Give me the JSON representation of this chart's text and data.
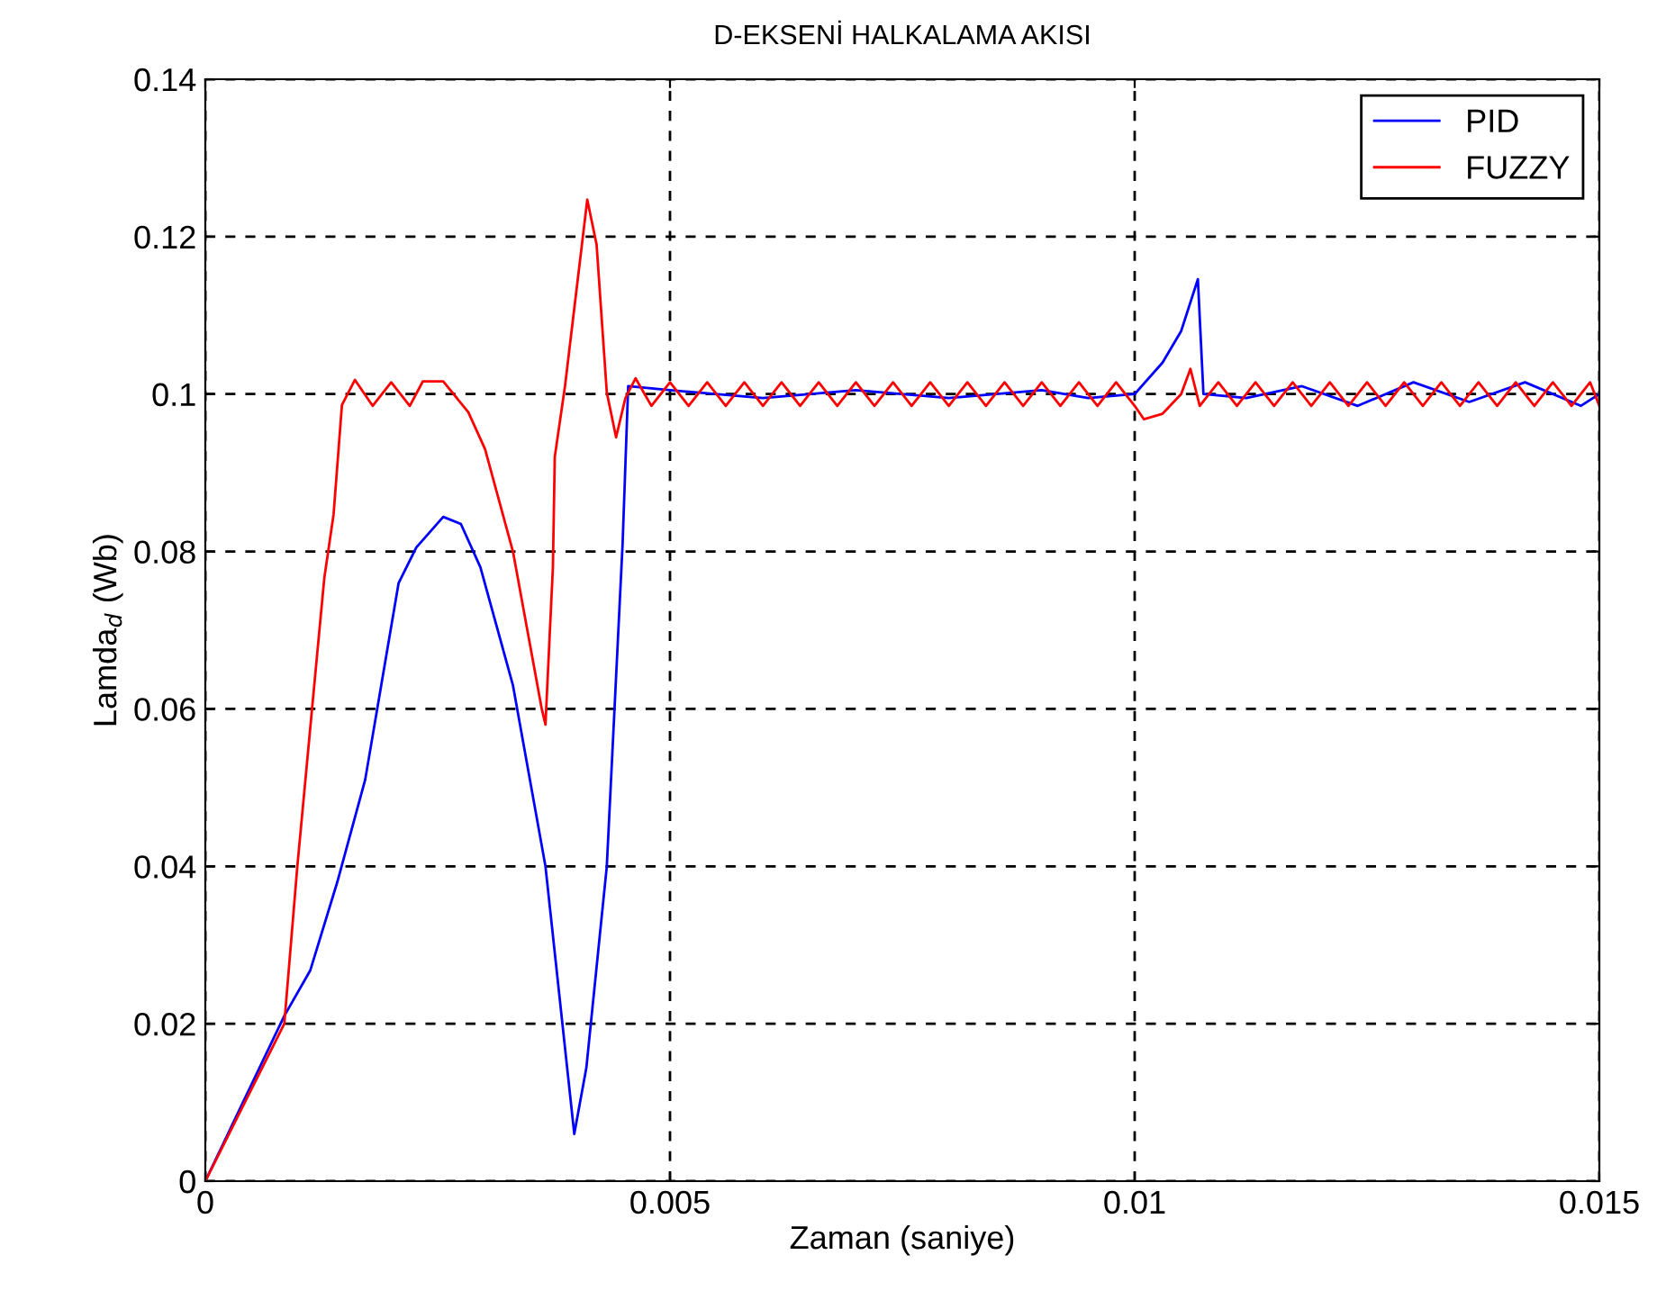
{
  "chart_data": {
    "type": "line",
    "title": "D-EKSENİ HALKALAMA AKISI",
    "xlabel": "Zaman (saniye)",
    "ylabel": "Lamda$_{d}$ (Wb)",
    "xlim": [
      0,
      0.015
    ],
    "ylim": [
      0,
      0.14
    ],
    "xticks": [
      0,
      0.005,
      0.01,
      0.015
    ],
    "yticks": [
      0,
      0.02,
      0.04,
      0.06,
      0.08,
      0.1,
      0.12,
      0.14
    ],
    "grid": true,
    "legend": "top right",
    "line_style": "solid",
    "marker": "none",
    "series": [
      {
        "name": "PID",
        "color": "#0000ff",
        "x": [
          0,
          0.00085,
          0.00113,
          0.00142,
          0.00172,
          0.00208,
          0.00227,
          0.00256,
          0.00275,
          0.00296,
          0.00331,
          0.00366,
          0.00397,
          0.0041,
          0.00432,
          0.00449,
          0.00455,
          0.005,
          0.006,
          0.007,
          0.008,
          0.009,
          0.0095,
          0.01,
          0.0103,
          0.0105,
          0.01068,
          0.01074,
          0.0112,
          0.0118,
          0.0124,
          0.013,
          0.0136,
          0.0142,
          0.0148,
          0.015
        ],
        "values": [
          0,
          0.021,
          0.0268,
          0.038,
          0.051,
          0.076,
          0.0805,
          0.0844,
          0.0835,
          0.078,
          0.063,
          0.04,
          0.006,
          0.0144,
          0.04,
          0.081,
          0.101,
          0.1005,
          0.0995,
          0.1005,
          0.0995,
          0.1005,
          0.0995,
          0.1,
          0.104,
          0.108,
          0.1146,
          0.1,
          0.0995,
          0.101,
          0.0985,
          0.1015,
          0.099,
          0.1015,
          0.0985,
          0.1
        ]
      },
      {
        "name": "FUZZY",
        "color": "#ff0000",
        "x": [
          0,
          0.00085,
          0.00099,
          0.00113,
          0.00128,
          0.00138,
          0.00147,
          0.00161,
          0.0018,
          0.002,
          0.0022,
          0.00234,
          0.00256,
          0.00283,
          0.00301,
          0.00331,
          0.00362,
          0.00366,
          0.00374,
          0.00376,
          0.00387,
          0.00411,
          0.00421,
          0.00432,
          0.00442,
          0.00452,
          0.00463,
          0.0048,
          0.005,
          0.0052,
          0.0054,
          0.0056,
          0.0058,
          0.006,
          0.0062,
          0.0064,
          0.0066,
          0.0068,
          0.007,
          0.0072,
          0.0074,
          0.0076,
          0.0078,
          0.008,
          0.0082,
          0.0084,
          0.0086,
          0.0088,
          0.009,
          0.0092,
          0.0094,
          0.0096,
          0.0098,
          0.01,
          0.0101,
          0.0103,
          0.0105,
          0.0106,
          0.0107,
          0.0109,
          0.0111,
          0.0113,
          0.0115,
          0.0117,
          0.0119,
          0.0121,
          0.0123,
          0.0125,
          0.0127,
          0.0129,
          0.0131,
          0.0133,
          0.0135,
          0.0137,
          0.0139,
          0.0141,
          0.0143,
          0.0145,
          0.0147,
          0.0149,
          0.015
        ],
        "values": [
          0,
          0.02,
          0.04,
          0.0577,
          0.0766,
          0.0847,
          0.0986,
          0.1018,
          0.0985,
          0.1015,
          0.0985,
          0.1016,
          0.1016,
          0.0977,
          0.093,
          0.08,
          0.06,
          0.058,
          0.078,
          0.092,
          0.101,
          0.1247,
          0.119,
          0.1002,
          0.0945,
          0.0995,
          0.102,
          0.0985,
          0.1015,
          0.0985,
          0.1015,
          0.0985,
          0.1015,
          0.0985,
          0.1015,
          0.0985,
          0.1015,
          0.0985,
          0.1015,
          0.0985,
          0.1015,
          0.0985,
          0.1015,
          0.0985,
          0.1015,
          0.0985,
          0.1015,
          0.0985,
          0.1015,
          0.0985,
          0.1015,
          0.0985,
          0.1015,
          0.0985,
          0.0968,
          0.0975,
          0.1,
          0.1032,
          0.0985,
          0.1015,
          0.0985,
          0.1015,
          0.0985,
          0.1015,
          0.0985,
          0.1015,
          0.0985,
          0.1015,
          0.0985,
          0.1015,
          0.0985,
          0.1015,
          0.0985,
          0.1015,
          0.0985,
          0.1015,
          0.0985,
          0.1015,
          0.0985,
          0.1015,
          0.0985
        ]
      }
    ]
  }
}
